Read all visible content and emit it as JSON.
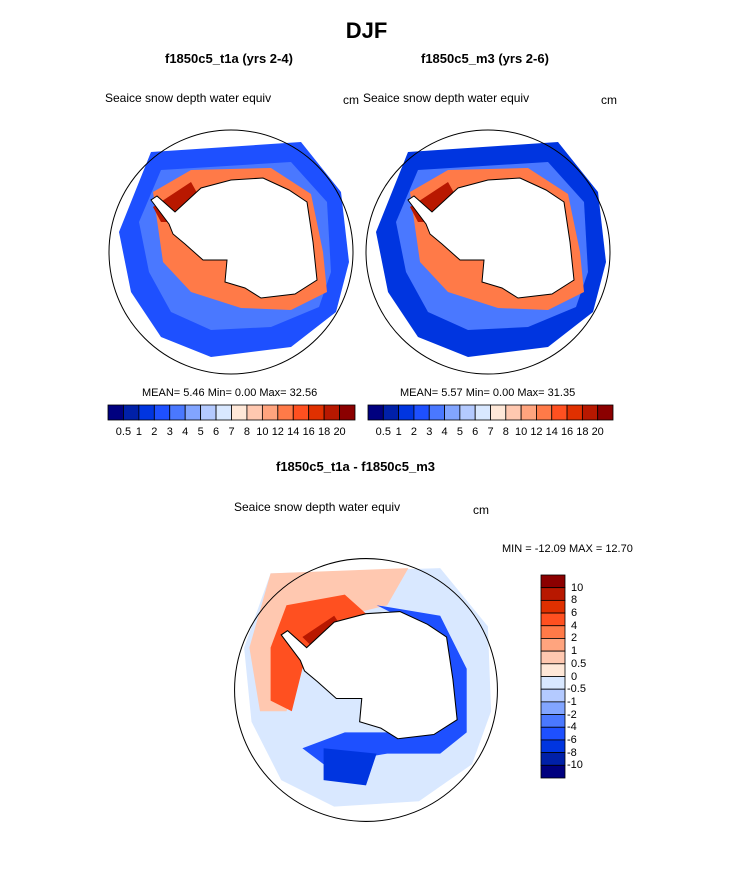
{
  "title": "DJF",
  "panels": [
    {
      "title": "f1850c5_t1a (yrs 2-4)",
      "variable": "Seaice snow depth water equiv",
      "units": "cm",
      "stats": "MEAN=   5.46  Min=    0.00  Max=  32.56"
    },
    {
      "title": "f1850c5_m3 (yrs 2-6)",
      "variable": "Seaice snow depth water equiv",
      "units": "cm",
      "stats": "MEAN=   5.57  Min=    0.00  Max=  31.35"
    }
  ],
  "diff": {
    "title": "f1850c5_t1a - f1850c5_m3",
    "variable": "Seaice snow depth water equiv",
    "units": "cm",
    "stats": "MIN = -12.09 MAX =  12.70"
  },
  "colors": [
    "#00007f",
    "#0020a8",
    "#0035e0",
    "#1e50ff",
    "#4a78ff",
    "#82a5ff",
    "#b4caff",
    "#d9e8ff",
    "#ffe8d8",
    "#ffc8b0",
    "#ffa47e",
    "#ff7a48",
    "#ff5020",
    "#e03000",
    "#b81800",
    "#8b0000"
  ],
  "levels": [
    "0.5",
    "1",
    "2",
    "3",
    "4",
    "5",
    "6",
    "7",
    "8",
    "10",
    "12",
    "14",
    "16",
    "18",
    "20"
  ],
  "diff_levels": [
    "10",
    "8",
    "6",
    "4",
    "2",
    "1",
    "0.5",
    "0",
    "-0.5",
    "-1",
    "-2",
    "-4",
    "-6",
    "-8",
    "-10"
  ]
}
